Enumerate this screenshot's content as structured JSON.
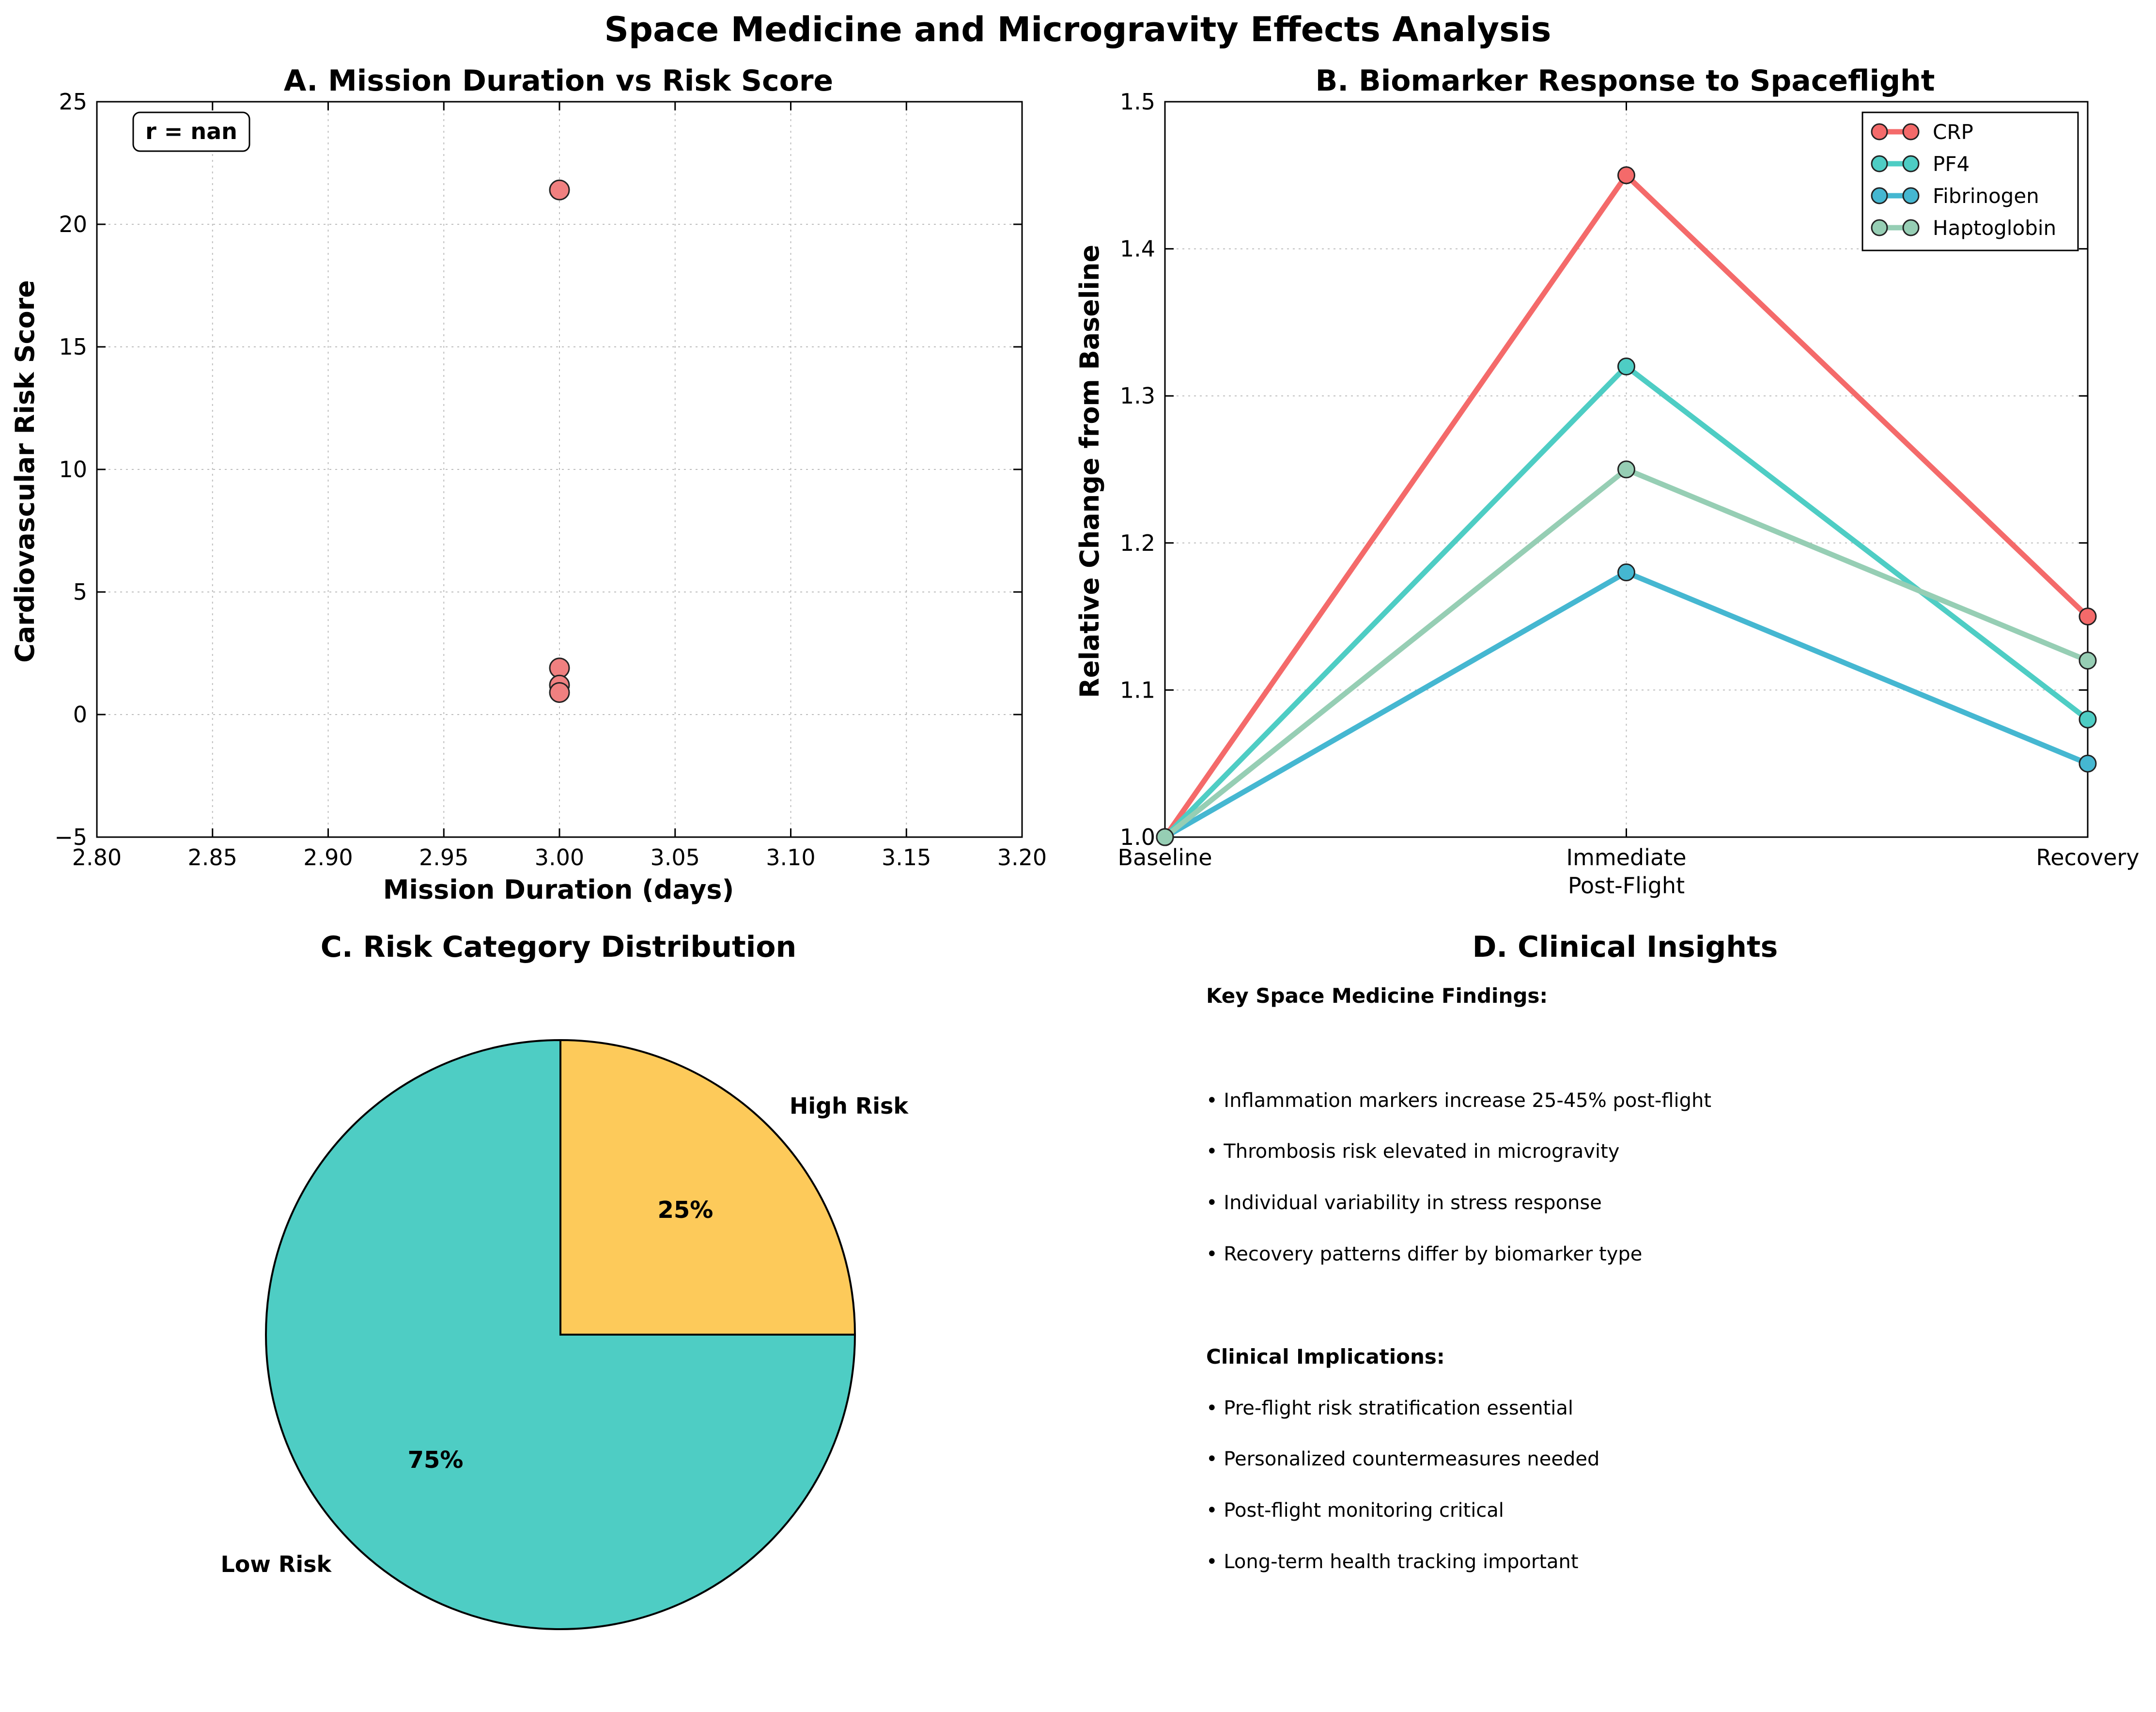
{
  "figure": {
    "title": "Space Medicine and Microgravity Effects Analysis"
  },
  "chart_data": [
    {
      "panel": "A",
      "type": "scatter",
      "title": "A. Mission Duration vs Risk Score",
      "xlabel": "Mission Duration (days)",
      "ylabel": "Cardiovascular Risk Score",
      "xlim": [
        2.8,
        3.2
      ],
      "ylim": [
        -5,
        25
      ],
      "xticks": [
        "2.80",
        "2.85",
        "2.90",
        "2.95",
        "3.00",
        "3.05",
        "3.10",
        "3.15",
        "3.20"
      ],
      "yticks": [
        "−5",
        "0",
        "5",
        "10",
        "15",
        "20",
        "25"
      ],
      "grid": true,
      "annotation": "r = nan",
      "marker_color": "#F08080",
      "points": [
        {
          "x": 3.0,
          "y": 21.4
        },
        {
          "x": 3.0,
          "y": 1.9
        },
        {
          "x": 3.0,
          "y": 1.2
        },
        {
          "x": 3.0,
          "y": 0.9
        }
      ]
    },
    {
      "panel": "B",
      "type": "line",
      "title": "B. Biomarker Response to Spaceflight",
      "xlabel": "",
      "ylabel": "Relative Change from Baseline",
      "categories": [
        "Baseline",
        "Immediate\nPost-Flight",
        "Recovery"
      ],
      "ylim": [
        1.0,
        1.5
      ],
      "yticks": [
        "1.0",
        "1.1",
        "1.2",
        "1.3",
        "1.4",
        "1.5"
      ],
      "grid": true,
      "legend_position": "top-right",
      "series": [
        {
          "name": "CRP",
          "color": "#F46A6A",
          "values": [
            1.0,
            1.45,
            1.15
          ]
        },
        {
          "name": "PF4",
          "color": "#4ECDC4",
          "values": [
            1.0,
            1.32,
            1.08
          ]
        },
        {
          "name": "Fibrinogen",
          "color": "#45B7D1",
          "values": [
            1.0,
            1.18,
            1.05
          ]
        },
        {
          "name": "Haptoglobin",
          "color": "#96CEB4",
          "values": [
            1.0,
            1.25,
            1.12
          ]
        }
      ]
    },
    {
      "panel": "C",
      "type": "pie",
      "title": "C. Risk Category Distribution",
      "slices": [
        {
          "label": "High Risk",
          "value": 25,
          "pct_label": "25%",
          "color": "#FDCA5A"
        },
        {
          "label": "Low Risk",
          "value": 75,
          "pct_label": "75%",
          "color": "#4ECDC4"
        }
      ]
    }
  ],
  "insights": {
    "title": "D. Clinical Insights",
    "findings_header": "Key Space Medicine Findings:",
    "findings": [
      "• Inflammation markers increase 25-45% post-flight",
      "• Thrombosis risk elevated in microgravity",
      "• Individual variability in stress response",
      "• Recovery patterns differ by biomarker type"
    ],
    "implications_header": "Clinical Implications:",
    "implications": [
      "• Pre-flight risk stratification essential",
      "• Personalized countermeasures needed",
      "• Post-flight monitoring critical",
      "• Long-term health tracking important"
    ]
  }
}
